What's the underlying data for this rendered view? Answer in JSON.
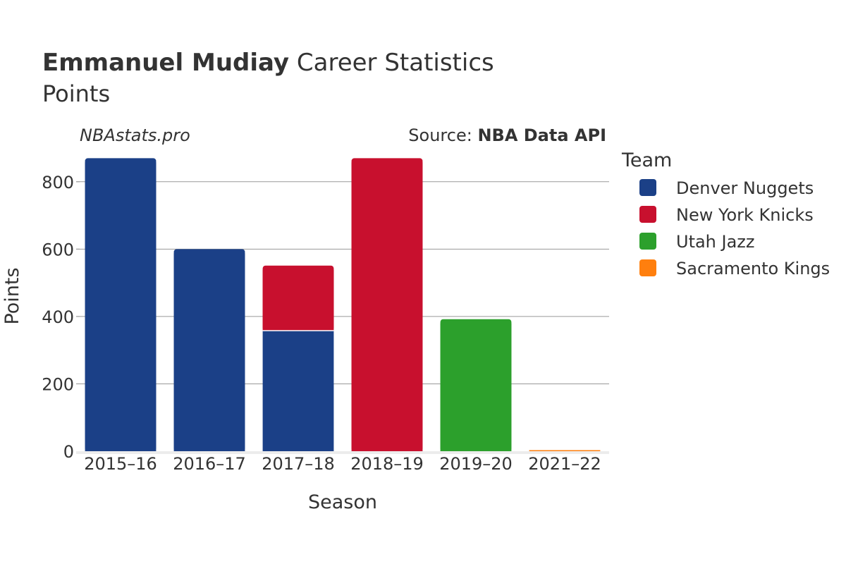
{
  "header": {
    "title_bold": "Emmanuel Mudiay",
    "title_rest": " Career Statistics",
    "subtitle": "Points",
    "watermark": "NBAstats.pro",
    "source_prefix": "Source: ",
    "source_name": "NBA Data API"
  },
  "legend": {
    "title": "Team",
    "position": "right",
    "items": [
      {
        "label": "Denver Nuggets",
        "color": "#1b4087"
      },
      {
        "label": "New York Knicks",
        "color": "#c8102e"
      },
      {
        "label": "Utah Jazz",
        "color": "#2ca02c"
      },
      {
        "label": "Sacramento Kings",
        "color": "#ff7f0e"
      }
    ]
  },
  "chart_data": {
    "type": "bar",
    "stacked": true,
    "title": "Emmanuel Mudiay Career Statistics",
    "subtitle": "Points",
    "xlabel": "Season",
    "ylabel": "Points",
    "ylim": [
      0,
      900
    ],
    "yticks": [
      0,
      200,
      400,
      600,
      800
    ],
    "grid": true,
    "categories": [
      "2015–16",
      "2016–17",
      "2017–18",
      "2018–19",
      "2019–20",
      "2021–22"
    ],
    "series": [
      {
        "name": "Denver Nuggets",
        "color": "#1b4087",
        "values": [
          870,
          600,
          358,
          0,
          0,
          0
        ]
      },
      {
        "name": "New York Knicks",
        "color": "#c8102e",
        "values": [
          0,
          0,
          193,
          870,
          0,
          0
        ]
      },
      {
        "name": "Utah Jazz",
        "color": "#2ca02c",
        "values": [
          0,
          0,
          0,
          0,
          392,
          0
        ]
      },
      {
        "name": "Sacramento Kings",
        "color": "#ff7f0e",
        "values": [
          0,
          0,
          0,
          0,
          0,
          2
        ]
      }
    ]
  }
}
